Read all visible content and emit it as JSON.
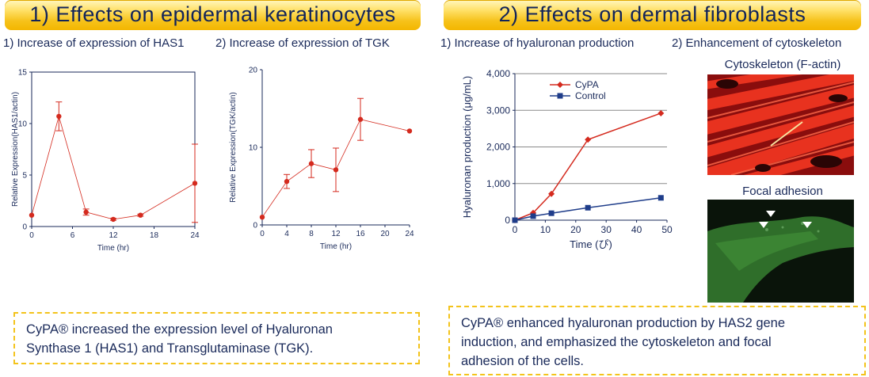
{
  "banners": {
    "left": "1) Effects on epidermal keratinocytes",
    "right": "2) Effects on dermal fibroblasts"
  },
  "subtitles": {
    "has1": "1) Increase of expression of HAS1",
    "tgk": "2) Increase of expression of TGK",
    "hyaluronan": "1) Increase of hyaluronan production",
    "cytoskeleton": "2) Enhancement of cytoskeleton"
  },
  "micrographs": {
    "actin_title": "Cytoskeleton (F-actin)",
    "focal_title": "Focal adhesion"
  },
  "notes": {
    "left_line1": "CyPA® increased the expression level of Hyaluronan",
    "left_line2": "Synthase 1 (HAS1) and Transglutaminase (TGK).",
    "right_line1": "CyPA® enhanced hyaluronan production by HAS2 gene",
    "right_line2": "induction, and emphasized the cytoskeleton and focal",
    "right_line3": "adhesion of the cells."
  },
  "chart_data": [
    {
      "type": "line",
      "xlabel": "Time (hr)",
      "ylabel": "Relative Expression(HAS1/actin)",
      "xlim": [
        0,
        24
      ],
      "ylim": [
        0,
        15
      ],
      "xticks": [
        0,
        6,
        12,
        18,
        24
      ],
      "yticks": [
        0,
        5,
        10,
        15
      ],
      "color": "#d42a1e",
      "series": [
        {
          "x": [
            0,
            4,
            8,
            12,
            16,
            24
          ],
          "y": [
            1.1,
            10.7,
            1.4,
            0.7,
            1.1,
            4.2
          ],
          "error": [
            0,
            1.4,
            0.3,
            0.1,
            0.1,
            3.8
          ]
        }
      ]
    },
    {
      "type": "line",
      "xlabel": "Time (hr)",
      "ylabel": "Relative Expression(TGK/actin)",
      "xlim": [
        0,
        24
      ],
      "ylim": [
        0,
        20
      ],
      "xticks": [
        0,
        4,
        8,
        12,
        16,
        20,
        24
      ],
      "yticks": [
        0,
        10,
        20
      ],
      "color": "#d42a1e",
      "series": [
        {
          "x": [
            0,
            4,
            8,
            12,
            16,
            24
          ],
          "y": [
            1.0,
            5.6,
            7.9,
            7.1,
            13.6,
            12.1
          ],
          "error": [
            0,
            0.9,
            1.8,
            2.8,
            2.7,
            0
          ]
        }
      ]
    },
    {
      "type": "line",
      "xlabel": "Time (ぴ)",
      "ylabel": "Hyaluronan production (μg/mL)",
      "xlim": [
        0,
        50
      ],
      "ylim": [
        0,
        4000
      ],
      "xticks": [
        0,
        10,
        20,
        30,
        40,
        50
      ],
      "yticks": [
        0,
        1000,
        2000,
        3000,
        4000
      ],
      "ytick_labels": [
        "0",
        "1,000",
        "2,000",
        "3,000",
        "4,000"
      ],
      "grid": true,
      "legend": "top-left",
      "series": [
        {
          "name": "CyPA",
          "color": "#d42a1e",
          "marker": "diamond",
          "x": [
            0,
            6,
            12,
            24,
            48
          ],
          "y": [
            0,
            200,
            720,
            2200,
            2920
          ]
        },
        {
          "name": "Control",
          "color": "#1f3d8a",
          "marker": "square",
          "x": [
            0,
            6,
            12,
            24,
            48
          ],
          "y": [
            0,
            110,
            190,
            340,
            610
          ]
        }
      ]
    }
  ]
}
